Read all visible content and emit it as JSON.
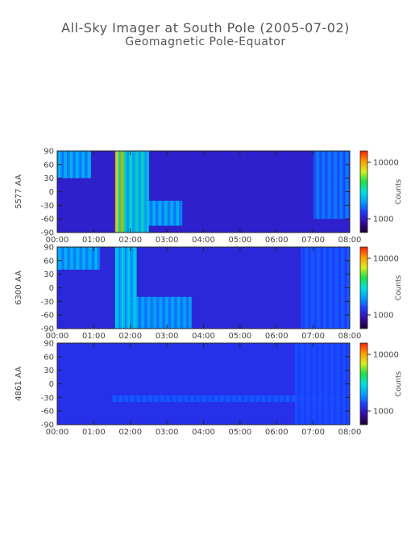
{
  "chart_data": {
    "type": "heatmap",
    "title": "All-Sky Imager at South Pole (2005-07-02)",
    "subtitle": "Geomagnetic Pole-Equator",
    "x_tick_labels": [
      "00:00",
      "01:00",
      "02:00",
      "03:00",
      "04:00",
      "05:00",
      "06:00",
      "07:00",
      "08:00"
    ],
    "xlim": [
      "00:00",
      "08:00"
    ],
    "y_tick_labels": [
      "90",
      "60",
      "30",
      "0",
      "-30",
      "-60",
      "-90"
    ],
    "ylim": [
      -90,
      90
    ],
    "colorbar": {
      "label": "Counts",
      "tick_labels": [
        "10000",
        "1000"
      ],
      "scale": "log"
    },
    "colormap": [
      "#1a0030",
      "#3b0aa0",
      "#1e3cff",
      "#00a0ff",
      "#00e0e0",
      "#20e040",
      "#d8f020",
      "#ff9a00",
      "#ff2000"
    ],
    "panels": [
      {
        "ylabel": "5577 AA",
        "background_level": 0.18,
        "features": [
          {
            "time": [
              "00:00",
              "00:55"
            ],
            "zenith": [
              30,
              90
            ],
            "level": 0.45
          },
          {
            "time": [
              "01:35",
              "01:50"
            ],
            "zenith": [
              -90,
              90
            ],
            "level": 0.85
          },
          {
            "time": [
              "01:50",
              "02:30"
            ],
            "zenith": [
              -90,
              90
            ],
            "level": 0.55
          },
          {
            "time": [
              "02:30",
              "03:25"
            ],
            "zenith": [
              -75,
              -20
            ],
            "level": 0.45
          },
          {
            "time": [
              "07:00",
              "08:00"
            ],
            "zenith": [
              -60,
              90
            ],
            "level": 0.35
          }
        ]
      },
      {
        "ylabel": "6300 AA",
        "background_level": 0.2,
        "features": [
          {
            "time": [
              "00:00",
              "01:10"
            ],
            "zenith": [
              40,
              90
            ],
            "level": 0.45
          },
          {
            "time": [
              "01:35",
              "02:10"
            ],
            "zenith": [
              -90,
              90
            ],
            "level": 0.5
          },
          {
            "time": [
              "02:10",
              "03:40"
            ],
            "zenith": [
              -90,
              -20
            ],
            "level": 0.42
          },
          {
            "time": [
              "06:40",
              "08:00"
            ],
            "zenith": [
              -90,
              90
            ],
            "level": 0.3
          }
        ]
      },
      {
        "ylabel": "4861 AA",
        "background_level": 0.22,
        "features": [
          {
            "time": [
              "01:30",
              "08:00"
            ],
            "zenith": [
              -40,
              -25
            ],
            "level": 0.3
          },
          {
            "time": [
              "06:30",
              "08:00"
            ],
            "zenith": [
              -90,
              90
            ],
            "level": 0.28
          }
        ]
      }
    ]
  }
}
